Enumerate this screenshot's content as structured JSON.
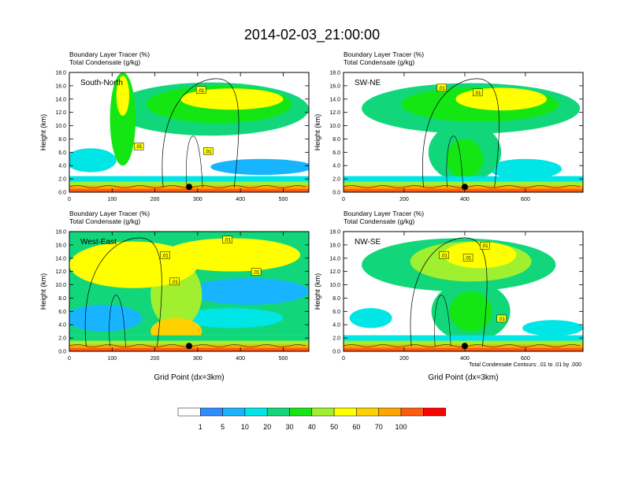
{
  "figure": {
    "title": "2014-02-03_21:00:00",
    "footnote": "Total Condensate Contours: .01 to .01 by .000"
  },
  "colorbar": {
    "labels": [
      "1",
      "5",
      "10",
      "20",
      "30",
      "40",
      "50",
      "60",
      "70",
      "100"
    ],
    "colors": [
      "#ffffff",
      "#2f8cff",
      "#18b4ff",
      "#00e5e5",
      "#12d77a",
      "#14e614",
      "#a0f030",
      "#ffff00",
      "#ffd000",
      "#ffa500",
      "#ff5a10",
      "#ff0000"
    ]
  },
  "chart_data": [
    {
      "type": "heatmap",
      "title_line1": "Boundary Layer Tracer",
      "title_line1_units": "(%)",
      "title_line2": "Total Condensate",
      "title_line2_units": "(g/kg)",
      "panel_label": "South-North",
      "ylabel": "Height (km)",
      "xlabel": "",
      "xlim": [
        0,
        560
      ],
      "ylim": [
        0,
        18
      ],
      "xticks": [
        "0",
        "100",
        "200",
        "300",
        "400",
        "500"
      ],
      "yticks": [
        "0.0",
        "2.0",
        "4.0",
        "6.0",
        "8.0",
        "10.0",
        "12.0",
        "14.0",
        "16.0",
        "18.0"
      ],
      "contour_labels": [
        ".01",
        ".01",
        ".01"
      ],
      "marker_x": 280,
      "bands": [
        {
          "y0": 0,
          "y1": 0.5,
          "level": 100
        },
        {
          "y0": 0.5,
          "y1": 1.0,
          "level": 70
        },
        {
          "y0": 1.0,
          "y1": 1.6,
          "level": 40
        },
        {
          "y0": 1.6,
          "y1": 2.4,
          "level": 10
        }
      ],
      "blobs": [
        {
          "cx": 330,
          "cy": 12.5,
          "rx": 230,
          "ry": 4.0,
          "level": 20
        },
        {
          "cx": 350,
          "cy": 13.2,
          "rx": 170,
          "ry": 2.8,
          "level": 30
        },
        {
          "cx": 380,
          "cy": 14.0,
          "rx": 120,
          "ry": 1.6,
          "level": 50
        },
        {
          "cx": 125,
          "cy": 11.0,
          "rx": 30,
          "ry": 7.0,
          "level": 30
        },
        {
          "cx": 125,
          "cy": 14.5,
          "rx": 15,
          "ry": 3.0,
          "level": 50
        },
        {
          "cx": 50,
          "cy": 4.8,
          "rx": 60,
          "ry": 1.8,
          "level": 10
        },
        {
          "cx": 450,
          "cy": 3.8,
          "rx": 120,
          "ry": 1.2,
          "level": 5
        }
      ]
    },
    {
      "type": "heatmap",
      "title_line1": "Boundary Layer Tracer",
      "title_line1_units": "(%)",
      "title_line2": "Total Condensate",
      "title_line2_units": "(g/kg)",
      "panel_label": "SW-NE",
      "ylabel": "Height (km)",
      "xlabel": "",
      "xlim": [
        0,
        790
      ],
      "ylim": [
        0,
        18
      ],
      "xticks": [
        "0",
        "200",
        "400",
        "600"
      ],
      "yticks": [
        "0.0",
        "2.0",
        "4.0",
        "6.0",
        "8.0",
        "10.0",
        "12.0",
        "14.0",
        "16.0",
        "18.0"
      ],
      "contour_labels": [
        ".01",
        ".01"
      ],
      "marker_x": 400,
      "bands": [
        {
          "y0": 0,
          "y1": 0.5,
          "level": 100
        },
        {
          "y0": 0.5,
          "y1": 1.0,
          "level": 70
        },
        {
          "y0": 1.0,
          "y1": 1.6,
          "level": 40
        },
        {
          "y0": 1.6,
          "y1": 2.4,
          "level": 10
        }
      ],
      "blobs": [
        {
          "cx": 420,
          "cy": 12.6,
          "rx": 360,
          "ry": 3.8,
          "level": 20
        },
        {
          "cx": 450,
          "cy": 13.2,
          "rx": 260,
          "ry": 2.6,
          "level": 30
        },
        {
          "cx": 520,
          "cy": 14.0,
          "rx": 150,
          "ry": 1.7,
          "level": 50
        },
        {
          "cx": 400,
          "cy": 6.0,
          "rx": 120,
          "ry": 4.5,
          "level": 20
        },
        {
          "cx": 400,
          "cy": 5.0,
          "rx": 60,
          "ry": 3.0,
          "level": 30
        },
        {
          "cx": 600,
          "cy": 3.5,
          "rx": 120,
          "ry": 1.5,
          "level": 10
        }
      ]
    },
    {
      "type": "heatmap",
      "title_line1": "Boundary Layer Tracer",
      "title_line1_units": "(%)",
      "title_line2": "Total Condensate",
      "title_line2_units": "(g/kg)",
      "panel_label": "West-East",
      "ylabel": "Height (km)",
      "xlabel": "Grid Point (dx=3km)",
      "xlim": [
        0,
        560
      ],
      "ylim": [
        0,
        18
      ],
      "xticks": [
        "0",
        "100",
        "200",
        "300",
        "400",
        "500"
      ],
      "yticks": [
        "0.0",
        "2.0",
        "4.0",
        "6.0",
        "8.0",
        "10.0",
        "12.0",
        "14.0",
        "16.0",
        "18.0"
      ],
      "contour_labels": [
        ".01",
        ".01",
        ".01",
        ".01"
      ],
      "marker_x": 280,
      "bands": [
        {
          "y0": 0,
          "y1": 0.5,
          "level": 100
        },
        {
          "y0": 0.5,
          "y1": 1.0,
          "level": 70
        },
        {
          "y0": 1.0,
          "y1": 1.6,
          "level": 40
        },
        {
          "y0": 1.6,
          "y1": 2.4,
          "level": 20
        },
        {
          "y0": 2.4,
          "y1": 18.0,
          "level": 20
        }
      ],
      "blobs": [
        {
          "cx": 150,
          "cy": 13.0,
          "rx": 150,
          "ry": 3.5,
          "level": 50
        },
        {
          "cx": 380,
          "cy": 14.5,
          "rx": 160,
          "ry": 2.5,
          "level": 50
        },
        {
          "cx": 250,
          "cy": 8.5,
          "rx": 60,
          "ry": 5.0,
          "level": 40
        },
        {
          "cx": 420,
          "cy": 9.0,
          "rx": 140,
          "ry": 2.0,
          "level": 5
        },
        {
          "cx": 80,
          "cy": 5.0,
          "rx": 90,
          "ry": 2.0,
          "level": 5
        },
        {
          "cx": 380,
          "cy": 5.0,
          "rx": 120,
          "ry": 1.5,
          "level": 10
        },
        {
          "cx": 250,
          "cy": 3.0,
          "rx": 60,
          "ry": 2.0,
          "level": 60
        }
      ]
    },
    {
      "type": "heatmap",
      "title_line1": "Boundary Layer Tracer",
      "title_line1_units": "(%)",
      "title_line2": "Total Condensate",
      "title_line2_units": "(g/kg)",
      "panel_label": "NW-SE",
      "ylabel": "Height (km)",
      "xlabel": "Grid Point (dx=3km)",
      "xlim": [
        0,
        790
      ],
      "ylim": [
        0,
        18
      ],
      "xticks": [
        "0",
        "200",
        "400",
        "600"
      ],
      "yticks": [
        "0.0",
        "2.0",
        "4.0",
        "6.0",
        "8.0",
        "10.0",
        "12.0",
        "14.0",
        "16.0",
        "18.0"
      ],
      "contour_labels": [
        ".01",
        ".01",
        ".01",
        ".01"
      ],
      "marker_x": 400,
      "bands": [
        {
          "y0": 0,
          "y1": 0.5,
          "level": 100
        },
        {
          "y0": 0.5,
          "y1": 1.0,
          "level": 70
        },
        {
          "y0": 1.0,
          "y1": 1.6,
          "level": 40
        },
        {
          "y0": 1.6,
          "y1": 2.4,
          "level": 10
        }
      ],
      "blobs": [
        {
          "cx": 380,
          "cy": 13.0,
          "rx": 320,
          "ry": 4.0,
          "level": 20
        },
        {
          "cx": 420,
          "cy": 13.5,
          "rx": 200,
          "ry": 3.0,
          "level": 40
        },
        {
          "cx": 450,
          "cy": 14.5,
          "rx": 120,
          "ry": 2.0,
          "level": 50
        },
        {
          "cx": 420,
          "cy": 6.0,
          "rx": 130,
          "ry": 4.5,
          "level": 20
        },
        {
          "cx": 420,
          "cy": 6.0,
          "rx": 70,
          "ry": 3.0,
          "level": 30
        },
        {
          "cx": 90,
          "cy": 5.0,
          "rx": 70,
          "ry": 1.5,
          "level": 10
        },
        {
          "cx": 690,
          "cy": 3.5,
          "rx": 100,
          "ry": 1.2,
          "level": 10
        }
      ]
    }
  ]
}
